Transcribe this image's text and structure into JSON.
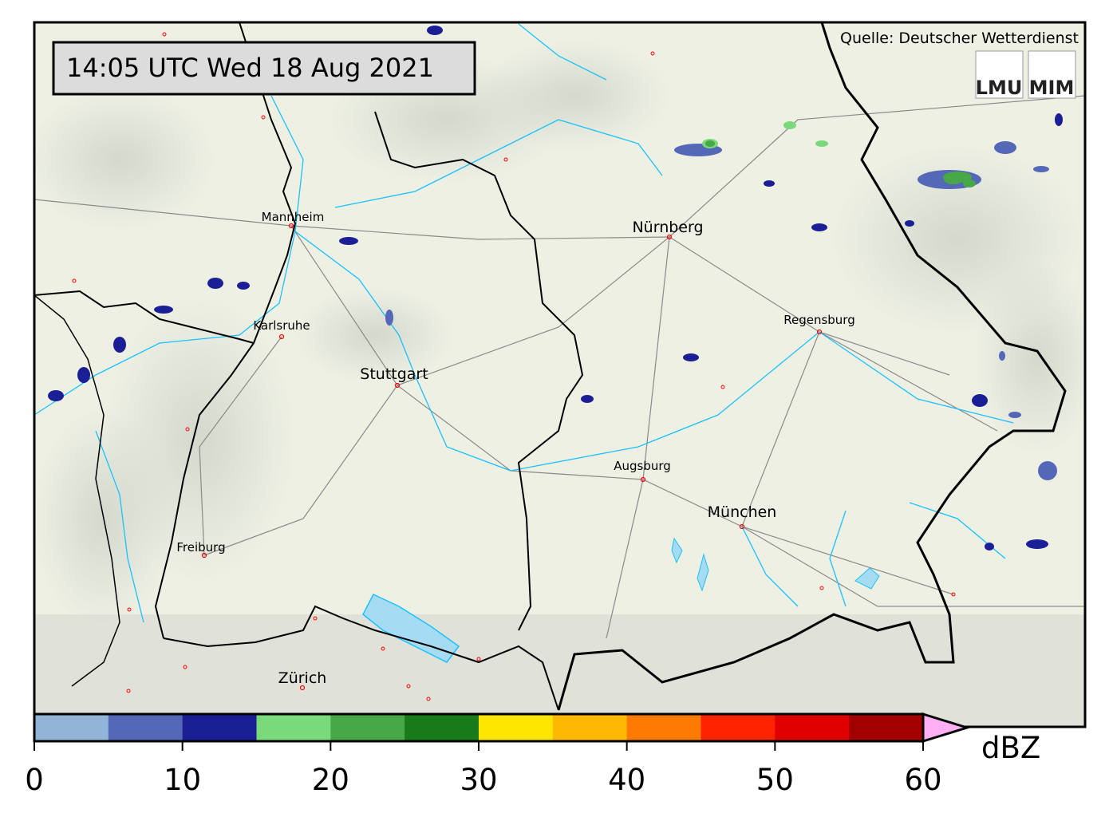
{
  "title": "14:05 UTC  Wed 18 Aug 2021",
  "source": "Quelle: Deutscher Wetterdienst",
  "logos": [
    "LMU",
    "MIM"
  ],
  "cities": [
    {
      "name": "Mannheim",
      "size": "small"
    },
    {
      "name": "Karlsruhe",
      "size": "small"
    },
    {
      "name": "Stuttgart",
      "size": "big"
    },
    {
      "name": "Nürnberg",
      "size": "big"
    },
    {
      "name": "Regensburg",
      "size": "small"
    },
    {
      "name": "Augsburg",
      "size": "small"
    },
    {
      "name": "München",
      "size": "big"
    },
    {
      "name": "Freiburg",
      "size": "small"
    },
    {
      "name": "Zürich",
      "size": "big"
    }
  ],
  "colorbar": {
    "unit": "dBZ",
    "ticks": [
      "0",
      "10",
      "20",
      "30",
      "40",
      "50",
      "60"
    ],
    "range": [
      0,
      60
    ],
    "step": 5,
    "colors": [
      "#92b4d6",
      "#5568b8",
      "#1b1f96",
      "#7ad97a",
      "#48a848",
      "#197a19",
      "#ffe600",
      "#ffb800",
      "#ff7a00",
      "#ff2400",
      "#e00000",
      "#a30000"
    ],
    "extend_color": "#ffb0f5"
  },
  "colors": {
    "background": "#eef0e4",
    "river": "#19c1ff",
    "lake": "#a6dcf3",
    "border": "#000000",
    "road": "#8a8a8a",
    "city_dot": "#ff0000"
  }
}
